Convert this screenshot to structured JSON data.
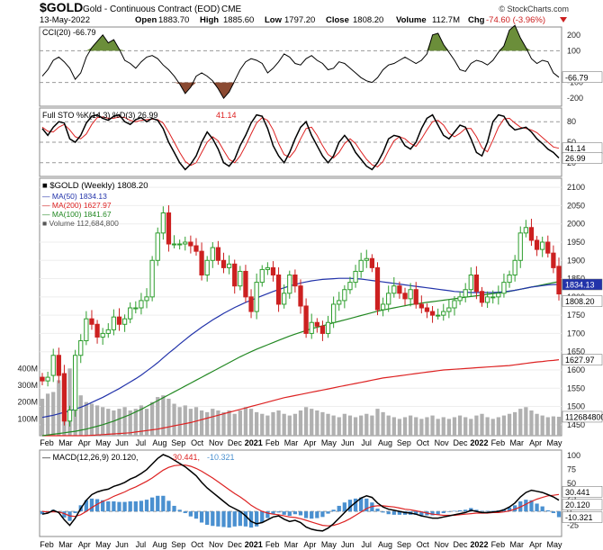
{
  "header": {
    "symbol": "$GOLD",
    "name": "Gold - Continuous Contract (EOD)",
    "exchange": "CME",
    "date": "13-May-2022",
    "open_label": "Open",
    "open": "1883.70",
    "high_label": "High",
    "high": "1885.60",
    "low_label": "Low",
    "low": "1797.20",
    "close_label": "Close",
    "close": "1808.20",
    "volume_label": "Volume",
    "volume": "112.7M",
    "chg_label": "Chg",
    "chg": "-74.60 (-3.96%)",
    "watermark": "© StockCharts.com"
  },
  "colors": {
    "up": "#2e9e2e",
    "down": "#cc2020",
    "ma50": "#2233aa",
    "ma200": "#dd2222",
    "ma100": "#228822",
    "volume": "#b0b0b0",
    "stoK": "#000000",
    "stoD": "#dd2222",
    "macd": "#000000",
    "signal": "#dd2222",
    "hist": "#4a90d0",
    "cciFill": "#6b8e3a"
  },
  "chart_data": [
    {
      "type": "line",
      "panel": "CCI",
      "legend": "CCI(20)",
      "value": "-66.79",
      "yticks": [
        "200",
        "100",
        "-100",
        "-200"
      ],
      "ylim": [
        -250,
        250
      ],
      "levels": [
        100,
        -100
      ],
      "series": [
        {
          "name": "CCI(20)",
          "values": [
            -60,
            -20,
            40,
            60,
            30,
            -10,
            -80,
            -40,
            60,
            120,
            160,
            200,
            150,
            170,
            110,
            40,
            20,
            -10,
            30,
            60,
            70,
            50,
            10,
            -20,
            -60,
            -110,
            -170,
            -130,
            -60,
            -40,
            -60,
            -90,
            -140,
            -200,
            -160,
            -90,
            -20,
            30,
            50,
            40,
            20,
            -40,
            -10,
            30,
            80,
            60,
            20,
            10,
            50,
            70,
            40,
            20,
            -20,
            -10,
            30,
            20,
            -10,
            -40,
            -70,
            -90,
            -100,
            -70,
            -20,
            10,
            20,
            40,
            60,
            40,
            20,
            40,
            80,
            200,
            210,
            140,
            90,
            40,
            -20,
            -30,
            20,
            40,
            30,
            10,
            40,
            90,
            130,
            230,
            260,
            180,
            120,
            50,
            20,
            40,
            30,
            -40,
            -66.79
          ]
        }
      ]
    },
    {
      "type": "line",
      "panel": "Full STO",
      "legend": "Full STO %K(14,3) %D(3)",
      "value_k": "26.99",
      "value_d": "41.14",
      "yticks": [
        "80",
        "50",
        "20"
      ],
      "ylim": [
        0,
        100
      ],
      "levels": [
        80,
        50,
        20
      ],
      "series": [
        {
          "name": "%K",
          "values": [
            70,
            60,
            72,
            80,
            78,
            55,
            50,
            60,
            78,
            88,
            90,
            85,
            82,
            88,
            90,
            80,
            76,
            83,
            86,
            80,
            85,
            82,
            70,
            50,
            35,
            20,
            10,
            18,
            30,
            50,
            65,
            55,
            40,
            20,
            15,
            25,
            45,
            60,
            78,
            90,
            88,
            70,
            45,
            30,
            20,
            35,
            55,
            72,
            80,
            60,
            45,
            30,
            20,
            30,
            50,
            60,
            50,
            35,
            25,
            15,
            10,
            20,
            35,
            55,
            60,
            58,
            45,
            40,
            50,
            70,
            85,
            90,
            75,
            60,
            55,
            65,
            75,
            72,
            55,
            35,
            30,
            50,
            80,
            90,
            88,
            75,
            68,
            70,
            72,
            65,
            55,
            48,
            40,
            35,
            26.99
          ]
        },
        {
          "name": "%D",
          "values": [
            72,
            66,
            65,
            72,
            76,
            68,
            58,
            55,
            62,
            76,
            86,
            87,
            85,
            85,
            87,
            86,
            82,
            80,
            82,
            83,
            84,
            83,
            78,
            65,
            50,
            35,
            22,
            16,
            20,
            35,
            50,
            58,
            52,
            38,
            25,
            20,
            30,
            45,
            62,
            78,
            86,
            82,
            68,
            48,
            32,
            28,
            38,
            55,
            70,
            72,
            60,
            45,
            32,
            27,
            35,
            48,
            55,
            48,
            36,
            25,
            17,
            14,
            22,
            38,
            52,
            58,
            55,
            48,
            44,
            55,
            68,
            80,
            82,
            75,
            63,
            58,
            63,
            70,
            70,
            58,
            42,
            36,
            53,
            72,
            84,
            85,
            78,
            72,
            70,
            68,
            64,
            57,
            50,
            43,
            41.14
          ]
        }
      ]
    },
    {
      "type": "candlestick",
      "panel": "Price",
      "legend": "$GOLD (Weekly)",
      "value": "1808.20",
      "yticks": [
        "2100",
        "2050",
        "2000",
        "1950",
        "1900",
        "1850",
        "1800",
        "1750",
        "1700",
        "1650",
        "1600",
        "1550",
        "1500",
        "1450"
      ],
      "ylim": [
        1420,
        2125
      ],
      "volume_ticks": [
        "400M",
        "300M",
        "200M",
        "100M"
      ],
      "volume_legend": "Volume",
      "volume_value": "112,684,800",
      "volume_label": "112684800",
      "xticks": [
        "Feb",
        "Mar",
        "Apr",
        "May",
        "Jun",
        "Jul",
        "Aug",
        "Sep",
        "Oct",
        "Nov",
        "Dec",
        "2021",
        "Feb",
        "Mar",
        "Apr",
        "May",
        "Jun",
        "Jul",
        "Aug",
        "Sep",
        "Oct",
        "Nov",
        "Dec",
        "2022",
        "Feb",
        "Mar",
        "Apr",
        "May"
      ],
      "close": [
        1570,
        1580,
        1640,
        1585,
        1460,
        1490,
        1640,
        1680,
        1740,
        1725,
        1690,
        1700,
        1710,
        1745,
        1725,
        1740,
        1770,
        1770,
        1790,
        1800,
        1900,
        1975,
        2030,
        1945,
        1945,
        1945,
        1950,
        1940,
        1925,
        1860,
        1900,
        1935,
        1900,
        1880,
        1890,
        1830,
        1870,
        1800,
        1760,
        1840,
        1875,
        1880,
        1860,
        1780,
        1810,
        1860,
        1830,
        1775,
        1700,
        1730,
        1720,
        1700,
        1730,
        1780,
        1790,
        1820,
        1840,
        1870,
        1900,
        1905,
        1880,
        1765,
        1780,
        1810,
        1830,
        1810,
        1795,
        1820,
        1780,
        1770,
        1760,
        1750,
        1750,
        1760,
        1770,
        1790,
        1800,
        1820,
        1860,
        1815,
        1785,
        1800,
        1800,
        1810,
        1840,
        1860,
        1900,
        1975,
        1990,
        1955,
        1930,
        1950,
        1920,
        1880,
        1808.2
      ],
      "open": [
        1580,
        1570,
        1585,
        1640,
        1590,
        1460,
        1490,
        1640,
        1680,
        1740,
        1725,
        1690,
        1700,
        1710,
        1745,
        1725,
        1740,
        1770,
        1770,
        1790,
        1800,
        1900,
        1975,
        2030,
        1945,
        1945,
        1945,
        1950,
        1940,
        1925,
        1860,
        1900,
        1935,
        1900,
        1880,
        1890,
        1830,
        1870,
        1800,
        1760,
        1840,
        1875,
        1880,
        1860,
        1780,
        1810,
        1860,
        1830,
        1775,
        1700,
        1730,
        1720,
        1700,
        1730,
        1780,
        1790,
        1820,
        1840,
        1870,
        1900,
        1905,
        1880,
        1765,
        1780,
        1810,
        1830,
        1810,
        1795,
        1820,
        1780,
        1770,
        1760,
        1750,
        1750,
        1760,
        1770,
        1790,
        1800,
        1820,
        1860,
        1815,
        1785,
        1800,
        1800,
        1810,
        1840,
        1860,
        1900,
        1975,
        1990,
        1955,
        1930,
        1950,
        1920,
        1883.7
      ],
      "ma50": [
        1470,
        1473,
        1476,
        1480,
        1484,
        1488,
        1493,
        1498,
        1504,
        1511,
        1518,
        1525,
        1533,
        1541,
        1549,
        1558,
        1567,
        1576,
        1586,
        1597,
        1608,
        1620,
        1633,
        1646,
        1658,
        1671,
        1683,
        1695,
        1706,
        1717,
        1727,
        1737,
        1746,
        1755,
        1763,
        1771,
        1778,
        1785,
        1791,
        1797,
        1803,
        1809,
        1815,
        1820,
        1825,
        1830,
        1834,
        1838,
        1841,
        1844,
        1846,
        1848,
        1849,
        1850,
        1851,
        1851,
        1851,
        1850,
        1849,
        1847,
        1845,
        1843,
        1841,
        1839,
        1837,
        1835,
        1833,
        1831,
        1829,
        1827,
        1825,
        1823,
        1821,
        1819,
        1817,
        1815,
        1814,
        1813,
        1812,
        1812,
        1812,
        1812,
        1812,
        1813,
        1814,
        1816,
        1818,
        1821,
        1824,
        1827,
        1829,
        1831,
        1833,
        1834,
        1834.13
      ],
      "ma100": [
        1420,
        1422,
        1424,
        1426,
        1428,
        1430,
        1432,
        1435,
        1438,
        1442,
        1446,
        1450,
        1455,
        1460,
        1466,
        1472,
        1478,
        1485,
        1492,
        1500,
        1508,
        1516,
        1524,
        1532,
        1540,
        1548,
        1556,
        1564,
        1572,
        1580,
        1588,
        1596,
        1604,
        1612,
        1620,
        1628,
        1636,
        1643,
        1650,
        1657,
        1663,
        1669,
        1675,
        1681,
        1687,
        1693,
        1698,
        1703,
        1708,
        1713,
        1717,
        1721,
        1725,
        1729,
        1733,
        1737,
        1741,
        1745,
        1749,
        1753,
        1757,
        1761,
        1764,
        1767,
        1770,
        1773,
        1776,
        1779,
        1781,
        1783,
        1785,
        1787,
        1789,
        1791,
        1793,
        1795,
        1797,
        1799,
        1801,
        1803,
        1805,
        1807,
        1809,
        1811,
        1813,
        1815,
        1818,
        1821,
        1824,
        1827,
        1830,
        1833,
        1836,
        1839,
        1841.67
      ],
      "ma200": [
        1420,
        1420,
        1420,
        1420,
        1420,
        1420,
        1420,
        1420,
        1420,
        1421,
        1422,
        1423,
        1424,
        1425,
        1426,
        1427,
        1428,
        1430,
        1432,
        1434,
        1436,
        1438,
        1441,
        1444,
        1447,
        1450,
        1453,
        1456,
        1460,
        1464,
        1468,
        1472,
        1476,
        1480,
        1484,
        1488,
        1492,
        1496,
        1500,
        1504,
        1508,
        1512,
        1516,
        1520,
        1524,
        1527,
        1530,
        1533,
        1536,
        1539,
        1542,
        1545,
        1548,
        1551,
        1554,
        1557,
        1560,
        1563,
        1566,
        1569,
        1572,
        1575,
        1578,
        1580,
        1582,
        1584,
        1586,
        1588,
        1590,
        1592,
        1594,
        1596,
        1598,
        1600,
        1601,
        1602,
        1603,
        1604,
        1605,
        1606,
        1607,
        1608,
        1609,
        1610,
        1611,
        1612,
        1614,
        1616,
        1618,
        1620,
        1622,
        1623,
        1625,
        1626,
        1627.97
      ],
      "volume": [
        220,
        250,
        260,
        330,
        350,
        400,
        300,
        240,
        200,
        190,
        180,
        170,
        160,
        150,
        160,
        170,
        150,
        160,
        180,
        160,
        200,
        230,
        240,
        220,
        190,
        170,
        180,
        160,
        170,
        150,
        140,
        160,
        150,
        140,
        150,
        130,
        150,
        170,
        160,
        140,
        130,
        120,
        140,
        150,
        130,
        120,
        130,
        150,
        170,
        160,
        150,
        140,
        130,
        120,
        110,
        130,
        120,
        110,
        120,
        130,
        120,
        160,
        140,
        120,
        110,
        100,
        110,
        120,
        110,
        100,
        110,
        120,
        100,
        110,
        100,
        110,
        120,
        110,
        100,
        120,
        130,
        110,
        100,
        110,
        120,
        130,
        140,
        160,
        170,
        150,
        130,
        120,
        110,
        115,
        112.7
      ],
      "series": [
        {
          "name": "MA(50)",
          "value": "1834.13"
        },
        {
          "name": "MA(200)",
          "value": "1627.97"
        },
        {
          "name": "MA(100)",
          "value": "1841.67"
        }
      ]
    },
    {
      "type": "line",
      "panel": "MACD",
      "legend": "MACD(12,26,9)",
      "value_macd": "20.120",
      "value_signal": "30.441",
      "value_hist": "-10.321",
      "yticks": [
        "100",
        "75",
        "50",
        "25",
        "0",
        "-25"
      ],
      "ylim": [
        -45,
        110
      ],
      "series": [
        {
          "name": "MACD",
          "values": [
            -5,
            -3,
            2,
            -2,
            -15,
            -25,
            -12,
            5,
            20,
            30,
            35,
            38,
            40,
            45,
            48,
            52,
            58,
            62,
            68,
            75,
            85,
            95,
            102,
            98,
            92,
            86,
            80,
            72,
            64,
            52,
            42,
            34,
            26,
            18,
            10,
            5,
            0,
            -8,
            -18,
            -22,
            -20,
            -15,
            -10,
            -8,
            -14,
            -18,
            -16,
            -20,
            -28,
            -32,
            -34,
            -35,
            -30,
            -22,
            -12,
            -2,
            8,
            16,
            24,
            28,
            25,
            15,
            8,
            4,
            2,
            0,
            -2,
            -3,
            -5,
            -8,
            -10,
            -12,
            -12,
            -10,
            -8,
            -6,
            -4,
            -2,
            2,
            0,
            -2,
            -2,
            -1,
            0,
            3,
            8,
            15,
            26,
            34,
            38,
            36,
            34,
            30,
            26,
            20.12
          ]
        },
        {
          "name": "Signal",
          "values": [
            0,
            -1,
            -1,
            -1,
            -4,
            -8,
            -9,
            -6,
            0,
            7,
            13,
            18,
            22,
            27,
            31,
            35,
            40,
            44,
            49,
            54,
            60,
            67,
            74,
            79,
            82,
            83,
            83,
            81,
            77,
            72,
            66,
            60,
            53,
            46,
            39,
            32,
            26,
            19,
            11,
            5,
            0,
            -3,
            -5,
            -6,
            -8,
            -10,
            -11,
            -13,
            -16,
            -19,
            -22,
            -25,
            -26,
            -25,
            -22,
            -18,
            -13,
            -7,
            -1,
            5,
            9,
            10,
            10,
            9,
            8,
            6,
            4,
            3,
            1,
            -1,
            -3,
            -5,
            -6,
            -7,
            -7,
            -7,
            -6,
            -5,
            -4,
            -3,
            -3,
            -3,
            -2,
            -2,
            -1,
            1,
            4,
            8,
            13,
            18,
            22,
            25,
            28,
            29,
            30.441
          ]
        }
      ]
    }
  ]
}
